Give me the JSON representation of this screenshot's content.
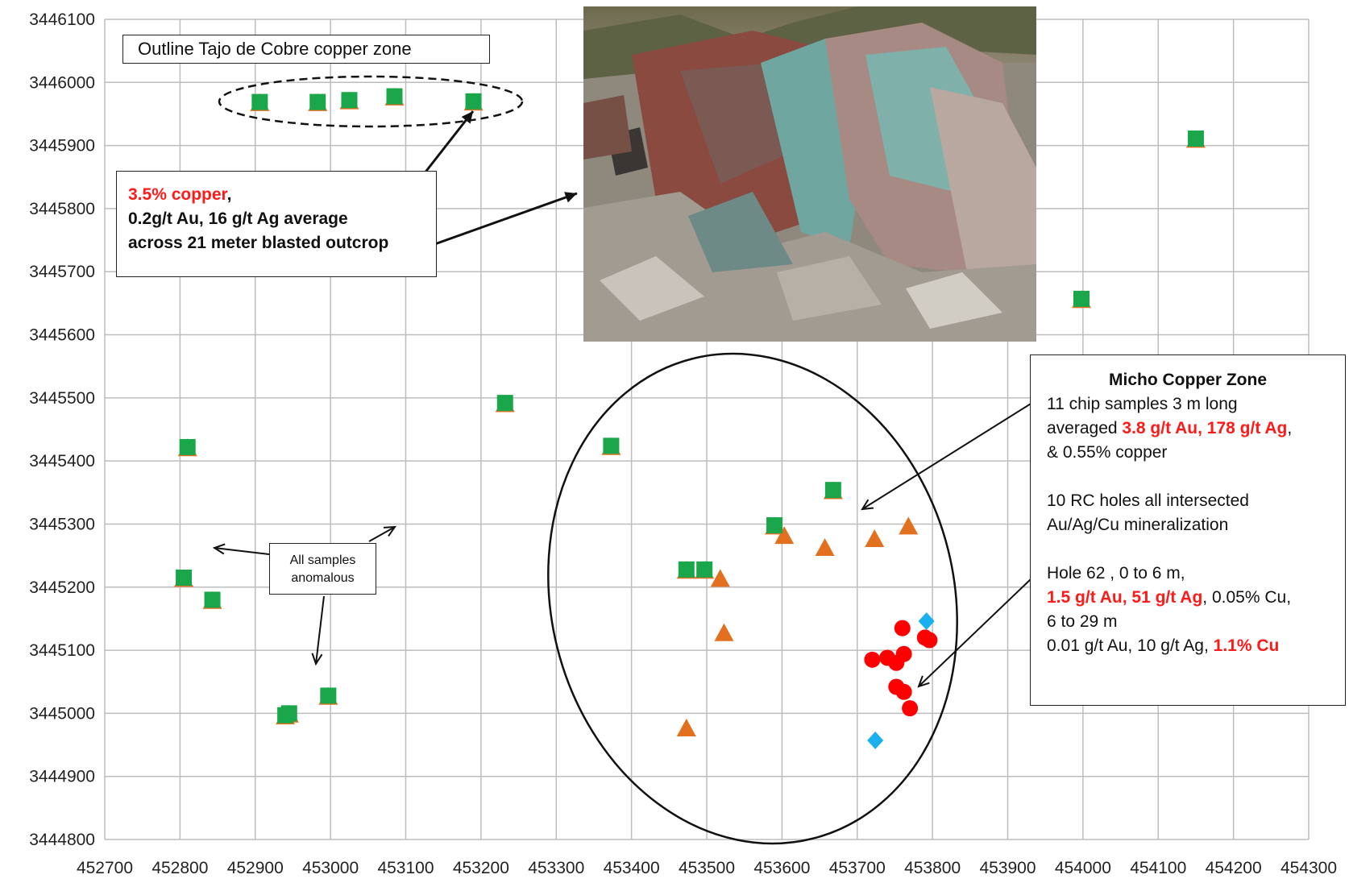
{
  "chart_data": {
    "type": "scatter",
    "title": "Tajo de Cobre copper zone",
    "xlim": [
      452700,
      454300
    ],
    "ylim": [
      3444800,
      3446100
    ],
    "x_ticks": [
      "452700",
      "452800",
      "452900",
      "453000",
      "453100",
      "453200",
      "453300",
      "453400",
      "453500",
      "453600",
      "453700",
      "453800",
      "453900",
      "454000",
      "454100",
      "454200",
      "454300"
    ],
    "y_ticks": [
      "3446100",
      "3446000",
      "3445900",
      "3445800",
      "3445700",
      "3445600",
      "3445500",
      "3445400",
      "3445300",
      "3445200",
      "3445100",
      "3445000",
      "3444900",
      "3444800"
    ],
    "grid": true,
    "legend": "none",
    "series": [
      {
        "marker": "square",
        "color": "#1aa64a",
        "points": [
          [
            452906,
            3445969
          ],
          [
            452983,
            3445969
          ],
          [
            453025,
            3445972
          ],
          [
            453085,
            3445978
          ],
          [
            453190,
            3445970
          ],
          [
            454150,
            3445911
          ],
          [
            453998,
            3445657
          ],
          [
            453232,
            3445492
          ],
          [
            452810,
            3445422
          ],
          [
            453373,
            3445424
          ],
          [
            452805,
            3445215
          ],
          [
            452843,
            3445180
          ],
          [
            452940,
            3444997
          ],
          [
            452945,
            3445000
          ],
          [
            452997,
            3445028
          ],
          [
            453473,
            3445228
          ],
          [
            453497,
            3445228
          ],
          [
            453590,
            3445298
          ],
          [
            453668,
            3445354
          ]
        ]
      },
      {
        "marker": "triangle",
        "color": "#e2701f",
        "points": [
          [
            452906,
            3445966
          ],
          [
            452983,
            3445966
          ],
          [
            453025,
            3445969
          ],
          [
            453085,
            3445975
          ],
          [
            453190,
            3445967
          ],
          [
            454150,
            3445908
          ],
          [
            453998,
            3445654
          ],
          [
            453232,
            3445489
          ],
          [
            452810,
            3445419
          ],
          [
            453373,
            3445421
          ],
          [
            452805,
            3445212
          ],
          [
            452843,
            3445177
          ],
          [
            452940,
            3444994
          ],
          [
            452945,
            3444997
          ],
          [
            452997,
            3445025
          ],
          [
            453473,
            3445225
          ],
          [
            453497,
            3445225
          ],
          [
            453590,
            3445295
          ],
          [
            453668,
            3445351
          ],
          [
            453603,
            3445280
          ],
          [
            453657,
            3445261
          ],
          [
            453723,
            3445275
          ],
          [
            453768,
            3445295
          ],
          [
            453518,
            3445212
          ],
          [
            453523,
            3445126
          ],
          [
            453473,
            3444975
          ]
        ]
      },
      {
        "marker": "circle",
        "color": "#ff0000",
        "points": [
          [
            453760,
            3445135
          ],
          [
            453720,
            3445085
          ],
          [
            453740,
            3445088
          ],
          [
            453752,
            3445080
          ],
          [
            453762,
            3445094
          ],
          [
            453790,
            3445120
          ],
          [
            453796,
            3445116
          ],
          [
            453752,
            3445042
          ],
          [
            453762,
            3445034
          ],
          [
            453770,
            3445008
          ]
        ]
      },
      {
        "marker": "diamond",
        "color": "#1ab0f0",
        "points": [
          [
            453792,
            3445146
          ],
          [
            453724,
            3444957
          ]
        ]
      }
    ]
  },
  "annotations": {
    "outline_label": "Outline Tajo de Cobre copper zone",
    "tajo_box": {
      "line1_red": "3.5% copper",
      "line1_rest": ",",
      "line2": "0.2g/t Au, 16 g/t Ag average",
      "line3": "across 21 meter blasted outcrop"
    },
    "anomalous_box": {
      "line1": "All samples",
      "line2": "anomalous"
    },
    "micho_box": {
      "title": "Micho Copper Zone",
      "p1_a": "11 chip samples 3 m long",
      "p1_b_pre": "averaged ",
      "p1_b_red": "3.8 g/t Au, 178 g/t Ag",
      "p1_b_post": ",",
      "p1_c": "& 0.55% copper",
      "p2_a": "10 RC holes all intersected",
      "p2_b": "Au/Ag/Cu  mineralization",
      "p3_a": "Hole 62 , 0 to 6 m,",
      "p3_b_red": "1.5 g/t Au, 51 g/t Ag",
      "p3_b_post": ", 0.05% Cu,",
      "p3_c": "6 to 29 m",
      "p3_d_pre": "0.01 g/t Au, 10 g/t Ag, ",
      "p3_d_red": "1.1% Cu"
    },
    "colors": {
      "photo_rock_red": "#8a4a40",
      "photo_rock_green": "#6fa6a0",
      "photo_rubble": "#9a938a"
    }
  }
}
